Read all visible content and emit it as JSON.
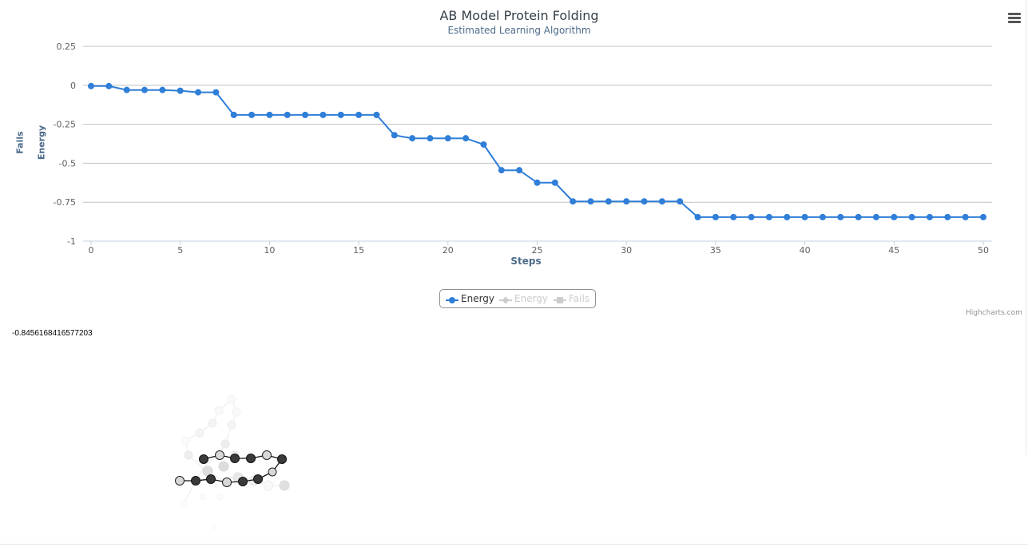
{
  "chart_data": {
    "type": "line",
    "title": "AB Model Protein Folding",
    "subtitle": "Estimated Learning Algorithm",
    "xlabel": "Steps",
    "ylabel": "Energy",
    "ylabel2": "Fails",
    "xlim": [
      0,
      50
    ],
    "ylim": [
      -1,
      0.25
    ],
    "x_ticks": [
      0,
      5,
      10,
      15,
      20,
      25,
      30,
      35,
      40,
      45,
      50
    ],
    "y_ticks": [
      0.25,
      0,
      -0.25,
      -0.5,
      -0.75,
      -1
    ],
    "y_tick_labels": [
      "0.25",
      "0",
      "-0.25",
      "-0.5",
      "-0.75",
      "-1"
    ],
    "grid": true,
    "legend_placement": "bottom-center",
    "series": [
      {
        "name": "Energy",
        "color": "#2f7ed8",
        "visible": true,
        "x": [
          0,
          1,
          2,
          3,
          4,
          5,
          6,
          7,
          8,
          9,
          10,
          11,
          12,
          13,
          14,
          15,
          16,
          17,
          18,
          19,
          20,
          21,
          22,
          23,
          24,
          25,
          26,
          27,
          28,
          29,
          30,
          31,
          32,
          33,
          34,
          35,
          36,
          37,
          38,
          39,
          40,
          41,
          42,
          43,
          44,
          45,
          46,
          47,
          48,
          49,
          50
        ],
        "values": [
          -0.005,
          -0.005,
          -0.03,
          -0.03,
          -0.03,
          -0.035,
          -0.045,
          -0.045,
          -0.19,
          -0.19,
          -0.19,
          -0.19,
          -0.19,
          -0.19,
          -0.19,
          -0.19,
          -0.19,
          -0.32,
          -0.34,
          -0.34,
          -0.34,
          -0.34,
          -0.38,
          -0.545,
          -0.545,
          -0.625,
          -0.625,
          -0.745,
          -0.745,
          -0.745,
          -0.745,
          -0.745,
          -0.745,
          -0.745,
          -0.8456,
          -0.8456,
          -0.8456,
          -0.8456,
          -0.8456,
          -0.8456,
          -0.8456,
          -0.8456,
          -0.8456,
          -0.8456,
          -0.8456,
          -0.8456,
          -0.8456,
          -0.8456,
          -0.8456,
          -0.8456,
          -0.8456
        ]
      },
      {
        "name": "Energy",
        "color": "#cccccc",
        "visible": false
      },
      {
        "name": "Fails",
        "color": "#cccccc",
        "visible": false
      }
    ]
  },
  "legend": {
    "items": [
      {
        "label": "Energy",
        "color": "#2f7ed8",
        "marker": "circle"
      },
      {
        "label": "Energy",
        "color": "#cccccc",
        "marker": "diamond"
      },
      {
        "label": "Fails",
        "color": "#cccccc",
        "marker": "square"
      }
    ]
  },
  "credits": "Highcharts.com",
  "energy_readout": "-0.8456168416577203",
  "menu_icon": "hamburger-menu-icon",
  "colors": {
    "series_blue": "#2f7ed8",
    "axis_title": "#4d6b8a",
    "grid": "#c0c0c0",
    "hydrophobic": "#3a3a3a",
    "polar": "#d8d8d8"
  }
}
